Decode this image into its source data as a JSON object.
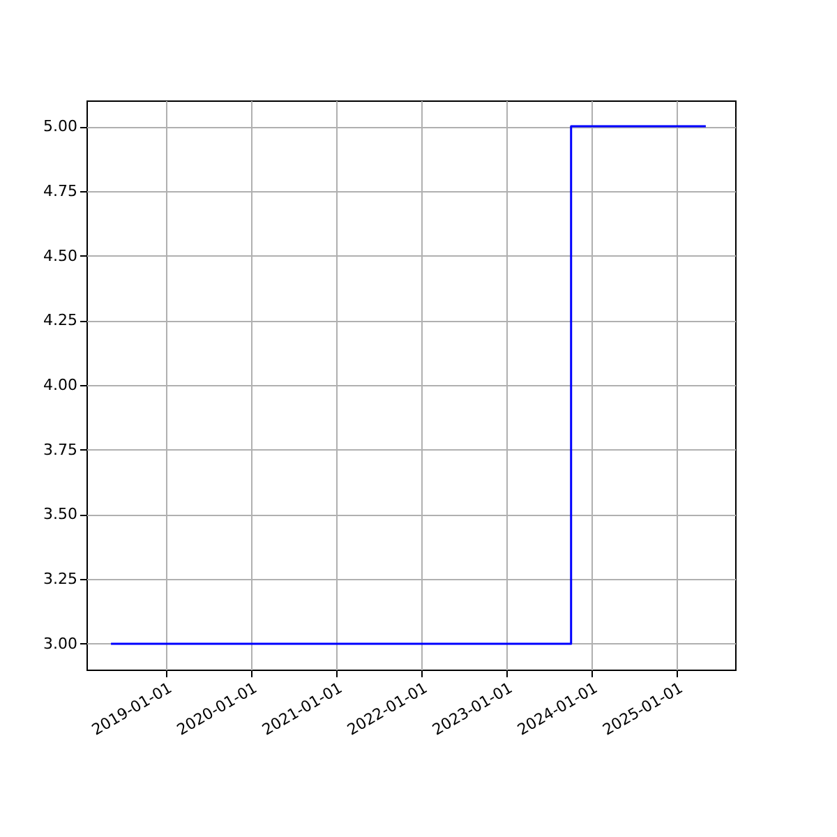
{
  "chart_data": {
    "type": "step",
    "x": [
      "2018-05-10",
      "2023-10-05",
      "2025-05-05"
    ],
    "series": [
      {
        "color": "#0000ff",
        "values": [
          3,
          5,
          5
        ]
      }
    ],
    "xlim": [
      "2018-01-25",
      "2025-09-08"
    ],
    "xticks": [
      "2019-01-01",
      "2020-01-01",
      "2021-01-01",
      "2022-01-01",
      "2023-01-01",
      "2024-01-01",
      "2025-01-01"
    ],
    "ylim": [
      2.9,
      5.1
    ],
    "yticks": [
      {
        "value": 3,
        "label": "3.00"
      },
      {
        "value": 3.25,
        "label": "3.25"
      },
      {
        "value": 3.5,
        "label": "3.50"
      },
      {
        "value": 3.75,
        "label": "3.75"
      },
      {
        "value": 4,
        "label": "4.00"
      },
      {
        "value": 4.25,
        "label": "4.25"
      },
      {
        "value": 4.5,
        "label": "4.50"
      },
      {
        "value": 4.75,
        "label": "4.75"
      },
      {
        "value": 5,
        "label": "5.00"
      }
    ],
    "grid": true
  }
}
